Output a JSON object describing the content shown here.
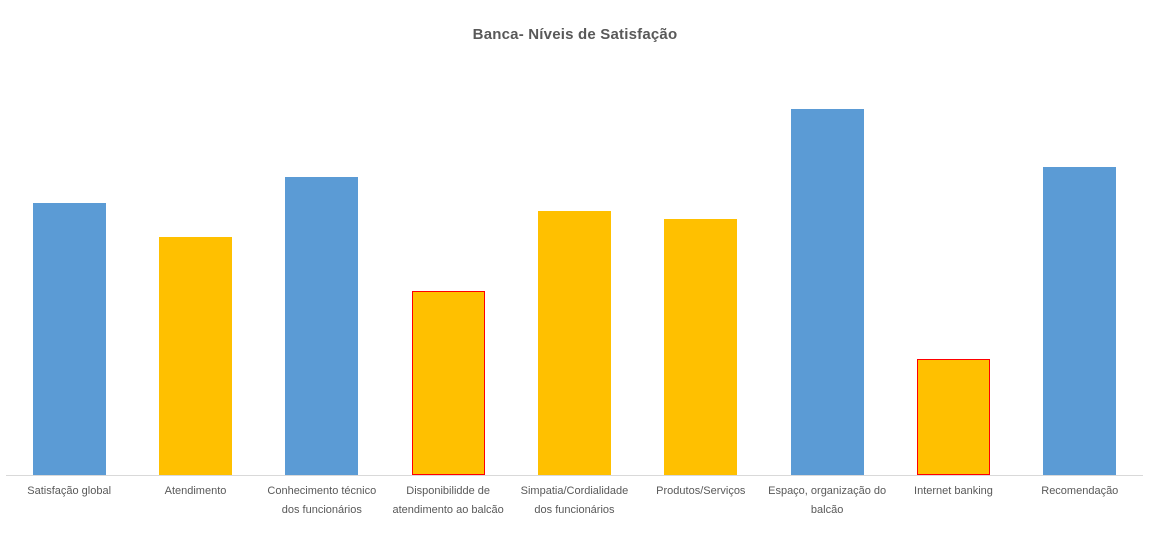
{
  "chart_data": {
    "type": "bar",
    "title": "Banca- Níveis de Satisfação",
    "categories": [
      "Satisfação global",
      "Atendimento",
      "Conhecimento técnico dos funcionários",
      "Disponibilidde de atendimento ao balcão",
      "Simpatia/Cordialidade dos funcionários",
      "Produtos/Serviços",
      "Espaço, organização do balcão",
      "Internet banking",
      "Recomendação"
    ],
    "values": [
      68,
      59.5,
      74.5,
      46,
      66,
      64,
      91.5,
      29,
      77
    ],
    "bar_colors": [
      "#5B9BD5",
      "#FFC000",
      "#5B9BD5",
      "#FFC000",
      "#FFC000",
      "#FFC000",
      "#5B9BD5",
      "#FFC000",
      "#5B9BD5"
    ],
    "highlighted_border": [
      false,
      false,
      false,
      true,
      false,
      false,
      false,
      true,
      false
    ],
    "highlight_border_color": "#FF0000",
    "xlabel": "",
    "ylabel": "",
    "ylim": [
      0,
      100
    ],
    "y_axis_visible": false,
    "grid": false,
    "legend_position": "none",
    "colors": {
      "series_blue": "#5B9BD5",
      "series_gold": "#FFC000",
      "axis_line": "#D9D9D9",
      "text": "#595959",
      "background": "#FFFFFF"
    }
  }
}
